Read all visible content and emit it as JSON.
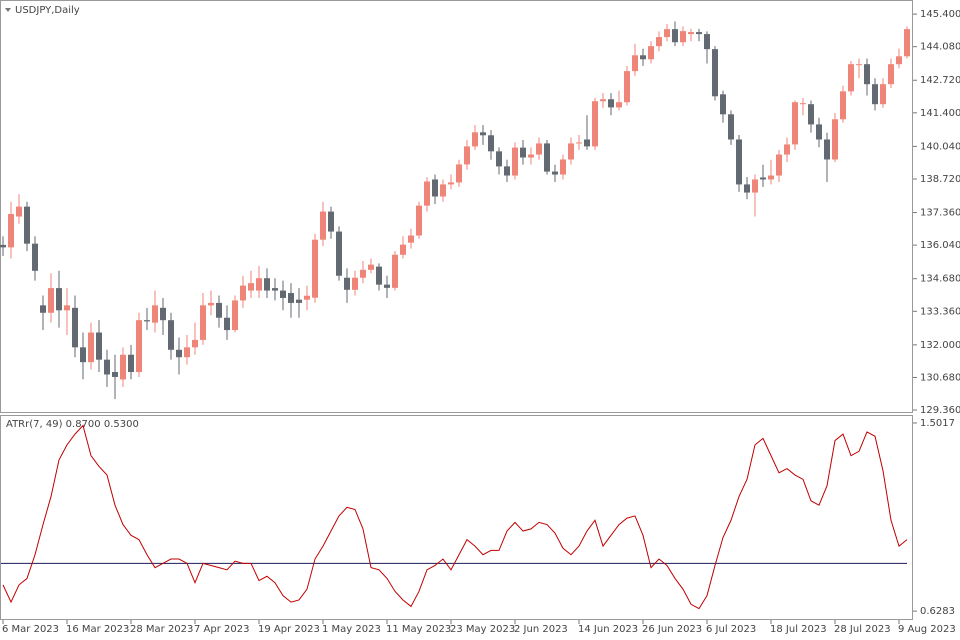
{
  "chart_data": [
    {
      "type": "candlestick",
      "title": "USDJPY,Daily",
      "up_color": "#ef8478",
      "down_color": "#626970",
      "categories": [
        "6 Mar 2023",
        null,
        null,
        null,
        null,
        null,
        null,
        null,
        "16 Mar 2023",
        null,
        null,
        null,
        null,
        null,
        null,
        null,
        "28 Mar 2023",
        null,
        null,
        null,
        null,
        null,
        null,
        null,
        "7 Apr 2023",
        null,
        null,
        null,
        null,
        null,
        null,
        null,
        "19 Apr 2023",
        null,
        null,
        null,
        null,
        null,
        null,
        null,
        "1 May 2023",
        null,
        null,
        null,
        null,
        null,
        null,
        null,
        "11 May 2023",
        null,
        null,
        null,
        null,
        null,
        null,
        null,
        "23 May 2023",
        null,
        null,
        null,
        null,
        null,
        null,
        null,
        "2 Jun 2023",
        null,
        null,
        null,
        null,
        null,
        null,
        null,
        "14 Jun 2023",
        null,
        null,
        null,
        null,
        null,
        null,
        null,
        "26 Jun 2023",
        null,
        null,
        null,
        null,
        null,
        null,
        null,
        "6 Jul 2023",
        null,
        null,
        null,
        null,
        null,
        null,
        null,
        "18 Jul 2023",
        null,
        null,
        null,
        null,
        null,
        null,
        null,
        "28 Jul 2023",
        null,
        null,
        null,
        null,
        null,
        null,
        null,
        "9 Aug 2023",
        null
      ],
      "open": [
        136.05,
        135.95,
        137.2,
        137.6,
        136.1,
        133.6,
        133.3,
        134.3,
        133.4,
        133.5,
        131.9,
        131.3,
        132.5,
        131.4,
        130.9,
        130.6,
        131.6,
        130.9,
        133.0,
        132.9,
        133.5,
        133.0,
        131.8,
        131.5,
        131.9,
        132.2,
        133.6,
        133.7,
        133.1,
        132.6,
        133.8,
        134.2,
        134.2,
        134.7,
        134.3,
        134.2,
        134.1,
        133.83,
        133.83,
        133.91,
        136.26,
        137.4,
        136.59,
        134.72,
        134.23,
        134.72,
        135.04,
        135.17,
        134.44,
        134.31,
        135.65,
        136.14,
        136.43,
        137.64,
        138.7,
        138.01,
        138.5,
        138.58,
        139.31,
        140.04,
        140.61,
        140.49,
        139.84,
        139.23,
        138.86,
        139.99,
        139.59,
        139.71,
        140.16,
        139.02,
        138.9,
        139.51,
        140.16,
        140.32,
        140.04,
        141.87,
        141.95,
        141.62,
        141.83,
        143.09,
        143.73,
        143.57,
        144.1,
        144.47,
        144.79,
        144.26,
        144.59,
        144.67,
        144.59,
        143.98,
        142.15,
        141.34,
        140.32,
        138.5,
        138.17,
        138.78,
        138.7,
        138.86,
        139.71,
        140.12,
        141.75,
        141.75,
        140.93,
        140.32,
        139.51,
        141.14,
        142.27,
        143.33,
        143.37,
        142.56,
        141.75,
        142.56,
        143.37,
        143.69
      ],
      "high": [
        136.4,
        137.8,
        138.1,
        137.8,
        136.4,
        134.0,
        134.9,
        135.0,
        134.3,
        134.0,
        132.5,
        132.9,
        133.0,
        131.8,
        131.6,
        131.9,
        132.0,
        133.3,
        133.5,
        134.2,
        133.9,
        133.3,
        132.3,
        132.4,
        132.9,
        134.1,
        134.2,
        134.0,
        133.6,
        134.0,
        134.8,
        135.0,
        135.2,
        135.1,
        134.7,
        134.6,
        134.5,
        134.3,
        134.4,
        136.5,
        137.8,
        137.6,
        136.8,
        135.1,
        135.0,
        135.4,
        135.5,
        135.3,
        134.8,
        135.8,
        136.4,
        136.7,
        137.8,
        138.8,
        138.9,
        138.7,
        138.9,
        139.5,
        140.3,
        140.9,
        140.9,
        140.7,
        140.0,
        139.5,
        140.2,
        140.3,
        140.0,
        140.4,
        140.3,
        139.3,
        139.7,
        140.4,
        140.5,
        141.3,
        142.0,
        142.2,
        142.2,
        142.3,
        143.3,
        144.2,
        144.0,
        144.3,
        144.7,
        145.0,
        145.1,
        144.9,
        144.8,
        144.8,
        144.7,
        144.1,
        142.3,
        141.5,
        140.5,
        138.8,
        138.9,
        139.3,
        139.5,
        139.9,
        140.4,
        141.9,
        142.0,
        141.9,
        141.2,
        140.6,
        141.4,
        142.5,
        143.5,
        143.6,
        143.6,
        142.8,
        142.8,
        143.6,
        144.0,
        144.9
      ],
      "low": [
        135.6,
        135.5,
        136.9,
        135.8,
        134.6,
        132.6,
        132.9,
        132.7,
        132.4,
        131.5,
        130.6,
        131.0,
        130.9,
        130.3,
        129.8,
        130.3,
        130.6,
        130.7,
        132.6,
        132.5,
        132.4,
        131.4,
        130.8,
        131.2,
        131.6,
        132.0,
        133.2,
        132.7,
        132.2,
        132.5,
        133.5,
        133.9,
        133.9,
        133.9,
        133.8,
        133.4,
        133.1,
        133.1,
        133.4,
        133.7,
        136.0,
        136.3,
        134.6,
        133.7,
        134.0,
        134.5,
        134.9,
        134.2,
        133.9,
        134.2,
        135.5,
        135.9,
        136.3,
        137.4,
        137.7,
        137.8,
        138.3,
        138.4,
        139.1,
        139.9,
        140.1,
        139.5,
        138.9,
        138.6,
        138.7,
        139.3,
        139.3,
        139.5,
        138.9,
        138.6,
        138.7,
        139.3,
        139.9,
        139.9,
        139.9,
        141.6,
        141.3,
        141.5,
        141.7,
        142.9,
        143.3,
        143.4,
        143.9,
        144.3,
        144.1,
        144.1,
        144.3,
        144.3,
        143.4,
        141.9,
        141.0,
        140.1,
        138.2,
        137.9,
        137.2,
        138.4,
        138.5,
        138.6,
        139.4,
        139.9,
        141.3,
        140.6,
        140.0,
        138.6,
        139.4,
        141.0,
        142.1,
        142.8,
        142.1,
        141.5,
        141.6,
        142.4,
        143.2,
        143.6
      ],
      "close": [
        135.95,
        137.3,
        137.6,
        136.1,
        135.0,
        133.3,
        134.3,
        133.4,
        133.6,
        131.9,
        131.3,
        132.5,
        131.4,
        130.8,
        130.7,
        131.6,
        130.9,
        133.0,
        132.95,
        133.6,
        133.0,
        131.8,
        131.5,
        131.9,
        132.2,
        133.6,
        133.7,
        133.1,
        132.6,
        133.8,
        134.4,
        134.5,
        134.7,
        134.2,
        134.2,
        133.9,
        133.7,
        133.7,
        133.99,
        136.26,
        137.4,
        136.59,
        134.8,
        134.23,
        134.72,
        135.04,
        135.25,
        134.44,
        134.31,
        135.65,
        136.06,
        136.43,
        137.64,
        138.62,
        138.01,
        138.5,
        138.58,
        139.31,
        140.04,
        140.61,
        140.49,
        139.84,
        139.23,
        138.86,
        139.99,
        139.59,
        139.71,
        140.16,
        139.02,
        138.9,
        139.51,
        140.16,
        140.2,
        140.04,
        141.87,
        141.95,
        141.62,
        141.83,
        143.09,
        143.73,
        143.57,
        144.1,
        144.47,
        144.79,
        144.26,
        144.71,
        144.67,
        144.59,
        143.98,
        142.07,
        141.34,
        140.32,
        138.5,
        138.17,
        138.7,
        138.7,
        138.86,
        139.71,
        140.12,
        141.83,
        141.79,
        140.93,
        140.32,
        139.51,
        141.14,
        142.27,
        143.37,
        143.37,
        142.56,
        141.75,
        142.56,
        143.37,
        143.69,
        144.79
      ],
      "ylim": [
        129.24,
        145.93
      ],
      "yticks": [
        {
          "value": 145.4,
          "label": "145.400"
        },
        {
          "value": 144.08,
          "label": "144.080"
        },
        {
          "value": 142.72,
          "label": "142.720"
        },
        {
          "value": 141.4,
          "label": "141.400"
        },
        {
          "value": 140.04,
          "label": "140.040"
        },
        {
          "value": 138.72,
          "label": "138.720"
        },
        {
          "value": 137.36,
          "label": "137.360"
        },
        {
          "value": 136.04,
          "label": "136.040"
        },
        {
          "value": 134.68,
          "label": "134.680"
        },
        {
          "value": 133.36,
          "label": "133.360"
        },
        {
          "value": 132.0,
          "label": "132.000"
        },
        {
          "value": 130.68,
          "label": "130.680"
        },
        {
          "value": 129.36,
          "label": "129.360"
        }
      ]
    },
    {
      "type": "line",
      "title": "ATRr(7, 49) 0.8700 0.5300",
      "color": "#c00000",
      "values": [
        0.75,
        0.67,
        0.75,
        0.78,
        0.89,
        1.03,
        1.16,
        1.33,
        1.4,
        1.45,
        1.49,
        1.35,
        1.3,
        1.26,
        1.12,
        1.03,
        0.98,
        0.96,
        0.89,
        0.83,
        0.85,
        0.87,
        0.87,
        0.85,
        0.76,
        0.85,
        0.84,
        0.83,
        0.82,
        0.86,
        0.85,
        0.85,
        0.77,
        0.79,
        0.76,
        0.7,
        0.67,
        0.68,
        0.73,
        0.87,
        0.93,
        1.0,
        1.07,
        1.11,
        1.1,
        1.01,
        0.83,
        0.82,
        0.78,
        0.72,
        0.68,
        0.65,
        0.72,
        0.82,
        0.84,
        0.87,
        0.82,
        0.89,
        0.96,
        0.93,
        0.89,
        0.91,
        0.91,
        1.0,
        1.04,
        1.0,
        1.01,
        1.04,
        1.03,
        0.99,
        0.92,
        0.89,
        0.93,
        1.0,
        1.05,
        0.93,
        0.98,
        1.03,
        1.06,
        1.07,
        0.98,
        0.83,
        0.87,
        0.84,
        0.78,
        0.73,
        0.66,
        0.64,
        0.7,
        0.84,
        0.97,
        1.05,
        1.16,
        1.24,
        1.4,
        1.43,
        1.35,
        1.27,
        1.29,
        1.26,
        1.24,
        1.14,
        1.12,
        1.21,
        1.42,
        1.45,
        1.35,
        1.37,
        1.46,
        1.44,
        1.28,
        1.05,
        0.93,
        0.96
      ],
      "level": 0.85,
      "level_color": "#1c1c5a",
      "ylim": [
        0.587,
        1.534
      ],
      "yticks": [
        1.5017,
        0.6283
      ]
    }
  ]
}
